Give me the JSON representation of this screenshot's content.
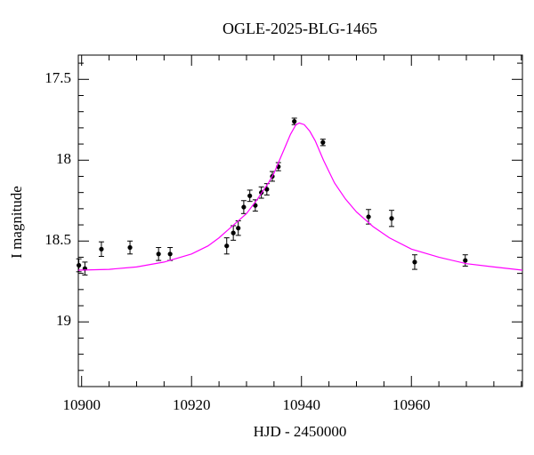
{
  "chart_data": {
    "type": "scatter",
    "title": "OGLE-2025-BLG-1465",
    "xlabel": "HJD - 2450000",
    "ylabel": "I magnitude",
    "xlim": [
      10899.4,
      10980.2
    ],
    "ylim": [
      19.4,
      17.35
    ],
    "xticks": [
      10900,
      10920,
      10940,
      10960
    ],
    "yticks": [
      17.5,
      18,
      18.5,
      19
    ],
    "xminorticks": [
      10905,
      10910,
      10915,
      10925,
      10930,
      10935,
      10945,
      10950,
      10955,
      10965,
      10970,
      10975,
      10980
    ],
    "yminorticks": [
      17.4,
      17.6,
      17.7,
      17.8,
      17.9,
      18.1,
      18.2,
      18.3,
      18.4,
      18.6,
      18.7,
      18.8,
      18.9,
      19.1,
      19.2,
      19.3
    ],
    "series": [
      {
        "type": "scatter",
        "color": "#000000",
        "x": [
          10899.5,
          10900.6,
          10903.6,
          10908.8,
          10914.0,
          10916.1,
          10926.4,
          10927.6,
          10928.5,
          10929.5,
          10930.6,
          10931.6,
          10932.7,
          10933.7,
          10934.7,
          10935.8,
          10938.7,
          10943.9,
          10952.2,
          10956.4,
          10960.6,
          10969.8
        ],
        "values": [
          18.65,
          18.67,
          18.55,
          18.54,
          18.58,
          18.58,
          18.53,
          18.45,
          18.42,
          18.29,
          18.22,
          18.28,
          18.2,
          18.18,
          18.1,
          18.04,
          17.76,
          17.89,
          18.35,
          18.36,
          18.63,
          18.62
        ],
        "errors": [
          0.04,
          0.04,
          0.045,
          0.04,
          0.04,
          0.04,
          0.05,
          0.045,
          0.045,
          0.04,
          0.035,
          0.035,
          0.035,
          0.035,
          0.03,
          0.025,
          0.02,
          0.02,
          0.045,
          0.05,
          0.045,
          0.035
        ]
      },
      {
        "type": "line",
        "color": "#ff00ff",
        "x": [
          10899.4,
          10905,
          10910,
          10915,
          10920,
          10923,
          10925,
          10927,
          10930,
          10932,
          10934,
          10935,
          10936,
          10937,
          10938,
          10939,
          10939.6,
          10940.5,
          10941.5,
          10942.5,
          10944,
          10946,
          10948,
          10950,
          10953,
          10956,
          10960,
          10965,
          10970,
          10975,
          10980.2
        ],
        "values": [
          18.68,
          18.675,
          18.66,
          18.63,
          18.58,
          18.53,
          18.48,
          18.42,
          18.33,
          18.24,
          18.14,
          18.08,
          18.0,
          17.92,
          17.84,
          17.78,
          17.77,
          17.78,
          17.82,
          17.88,
          18.0,
          18.14,
          18.24,
          18.32,
          18.41,
          18.48,
          18.55,
          18.6,
          18.64,
          18.66,
          18.68
        ]
      }
    ]
  }
}
